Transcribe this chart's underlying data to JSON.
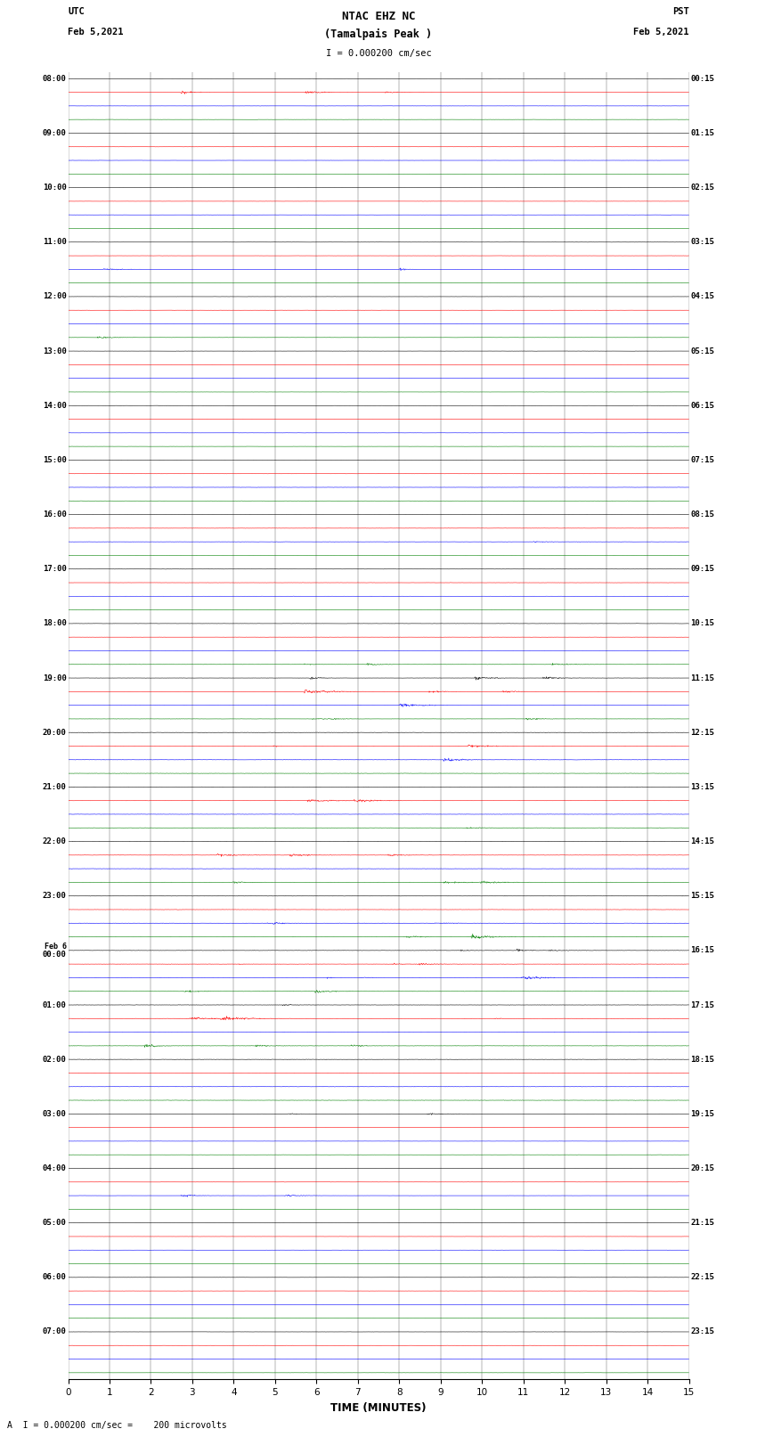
{
  "title_line1": "NTAC EHZ NC",
  "title_line2": "(Tamalpais Peak )",
  "title_scale": "I = 0.000200 cm/sec",
  "left_header_line1": "UTC",
  "left_header_line2": "Feb 5,2021",
  "right_header_line1": "PST",
  "right_header_line2": "Feb 5,2021",
  "footer": "A  I = 0.000200 cm/sec =    200 microvolts",
  "xlabel": "TIME (MINUTES)",
  "xlim": [
    0,
    15
  ],
  "xticks": [
    0,
    1,
    2,
    3,
    4,
    5,
    6,
    7,
    8,
    9,
    10,
    11,
    12,
    13,
    14,
    15
  ],
  "background_color": "#ffffff",
  "trace_colors": [
    "black",
    "red",
    "blue",
    "green"
  ],
  "left_times_utc": [
    "08:00",
    "",
    "",
    "",
    "09:00",
    "",
    "",
    "",
    "10:00",
    "",
    "",
    "",
    "11:00",
    "",
    "",
    "",
    "12:00",
    "",
    "",
    "",
    "13:00",
    "",
    "",
    "",
    "14:00",
    "",
    "",
    "",
    "15:00",
    "",
    "",
    "",
    "16:00",
    "",
    "",
    "",
    "17:00",
    "",
    "",
    "",
    "18:00",
    "",
    "",
    "",
    "19:00",
    "",
    "",
    "",
    "20:00",
    "",
    "",
    "",
    "21:00",
    "",
    "",
    "",
    "22:00",
    "",
    "",
    "",
    "23:00",
    "",
    "",
    "",
    "Feb 6\n00:00",
    "",
    "",
    "",
    "01:00",
    "",
    "",
    "",
    "02:00",
    "",
    "",
    "",
    "03:00",
    "",
    "",
    "",
    "04:00",
    "",
    "",
    "",
    "05:00",
    "",
    "",
    "",
    "06:00",
    "",
    "",
    "",
    "07:00",
    "",
    "",
    ""
  ],
  "right_times_pst": [
    "00:15",
    "",
    "",
    "",
    "01:15",
    "",
    "",
    "",
    "02:15",
    "",
    "",
    "",
    "03:15",
    "",
    "",
    "",
    "04:15",
    "",
    "",
    "",
    "05:15",
    "",
    "",
    "",
    "06:15",
    "",
    "",
    "",
    "07:15",
    "",
    "",
    "",
    "08:15",
    "",
    "",
    "",
    "09:15",
    "",
    "",
    "",
    "10:15",
    "",
    "",
    "",
    "11:15",
    "",
    "",
    "",
    "12:15",
    "",
    "",
    "",
    "13:15",
    "",
    "",
    "",
    "14:15",
    "",
    "",
    "",
    "15:15",
    "",
    "",
    "",
    "16:15",
    "",
    "",
    "",
    "17:15",
    "",
    "",
    "",
    "18:15",
    "",
    "",
    "",
    "19:15",
    "",
    "",
    "",
    "20:15",
    "",
    "",
    "",
    "21:15",
    "",
    "",
    "",
    "22:15",
    "",
    "",
    "",
    "23:15",
    "",
    "",
    ""
  ]
}
